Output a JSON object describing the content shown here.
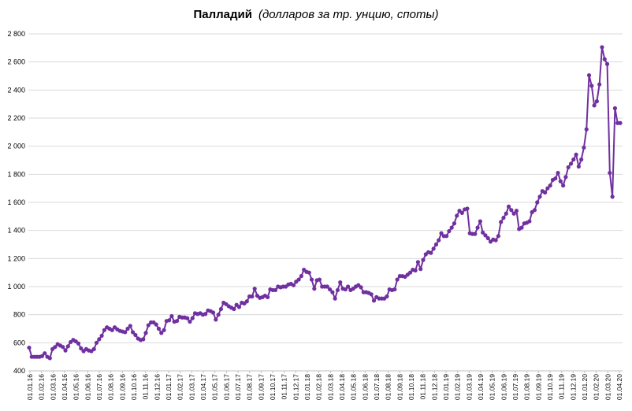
{
  "chart_data": {
    "type": "line",
    "title": "Палладий",
    "subtitle": "(долларов за тр. унцию, споты)",
    "xlabel": "",
    "ylabel": "",
    "ylim": [
      400,
      2800
    ],
    "y_ticks": [
      400,
      600,
      800,
      1000,
      1200,
      1400,
      1600,
      1800,
      2000,
      2200,
      2400,
      2600,
      2800
    ],
    "y_tick_labels": [
      "400",
      "600",
      "800",
      "1 000",
      "1 200",
      "1 400",
      "1 600",
      "1 800",
      "2 000",
      "2 200",
      "2 400",
      "2 600",
      "2 800"
    ],
    "x_tick_labels": [
      "01.01.16",
      "01.02.16",
      "01.03.16",
      "01.04.16",
      "01.05.16",
      "01.06.16",
      "01.07.16",
      "01.08.16",
      "01.09.16",
      "01.10.16",
      "01.11.16",
      "01.12.16",
      "01.01.17",
      "01.02.17",
      "01.03.17",
      "01.04.17",
      "01.05.17",
      "01.06.17",
      "01.07.17",
      "01.08.17",
      "01.09.17",
      "01.10.17",
      "01.11.17",
      "01.12.17",
      "01.01.18",
      "01.02.18",
      "01.03.18",
      "01.04.18",
      "01.05.18",
      "01.06.18",
      "01.07.18",
      "01.08.18",
      "01.09.18",
      "01.10.18",
      "01.11.18",
      "01.12.18",
      "01.01.19",
      "01.02.19",
      "01.03.19",
      "01.04.19",
      "01.05.19",
      "01.06.19",
      "01.07.19",
      "01.08.19",
      "01.09.19",
      "01.10.19",
      "01.11.19",
      "01.12.19",
      "01.01.20",
      "01.02.20",
      "01.03.20",
      "01.04.20"
    ],
    "grid": true,
    "legend": "none",
    "colors": {
      "series": "#7030a0",
      "grid": "#d9d9d9"
    },
    "series": [
      {
        "values": [
          565,
          500,
          500,
          500,
          500,
          505,
          525,
          500,
          490,
          555,
          570,
          590,
          580,
          570,
          545,
          575,
          605,
          620,
          610,
          595,
          560,
          540,
          555,
          545,
          540,
          555,
          600,
          625,
          650,
          690,
          710,
          700,
          690,
          710,
          695,
          685,
          680,
          675,
          700,
          720,
          675,
          655,
          630,
          620,
          625,
          670,
          725,
          745,
          745,
          730,
          700,
          670,
          690,
          755,
          760,
          790,
          750,
          755,
          785,
          780,
          780,
          775,
          750,
          775,
          810,
          805,
          810,
          800,
          805,
          830,
          825,
          815,
          765,
          800,
          840,
          885,
          875,
          860,
          850,
          840,
          870,
          855,
          885,
          880,
          895,
          930,
          930,
          985,
          935,
          920,
          925,
          935,
          925,
          980,
          975,
          975,
          1000,
          995,
          1000,
          1000,
          1015,
          1020,
          1010,
          1035,
          1050,
          1075,
          1120,
          1105,
          1100,
          1050,
          985,
          1045,
          1050,
          1000,
          1000,
          1000,
          980,
          960,
          915,
          975,
          1030,
          985,
          980,
          1000,
          975,
          985,
          1000,
          1010,
          995,
          960,
          960,
          955,
          945,
          900,
          925,
          915,
          915,
          915,
          930,
          980,
          975,
          980,
          1050,
          1075,
          1075,
          1070,
          1085,
          1100,
          1120,
          1115,
          1175,
          1125,
          1190,
          1230,
          1245,
          1240,
          1270,
          1300,
          1330,
          1380,
          1360,
          1360,
          1395,
          1420,
          1450,
          1505,
          1540,
          1525,
          1550,
          1555,
          1380,
          1375,
          1375,
          1420,
          1465,
          1385,
          1365,
          1345,
          1320,
          1335,
          1330,
          1360,
          1460,
          1490,
          1520,
          1570,
          1545,
          1520,
          1540,
          1410,
          1420,
          1450,
          1455,
          1465,
          1530,
          1545,
          1600,
          1640,
          1680,
          1670,
          1700,
          1720,
          1760,
          1770,
          1810,
          1750,
          1720,
          1780,
          1850,
          1875,
          1905,
          1940,
          1855,
          1905,
          1990,
          2120,
          2505,
          2430,
          2290,
          2320,
          2440,
          2705,
          2620,
          2585,
          1810,
          1640,
          2270,
          2165,
          2165
        ]
      }
    ]
  }
}
